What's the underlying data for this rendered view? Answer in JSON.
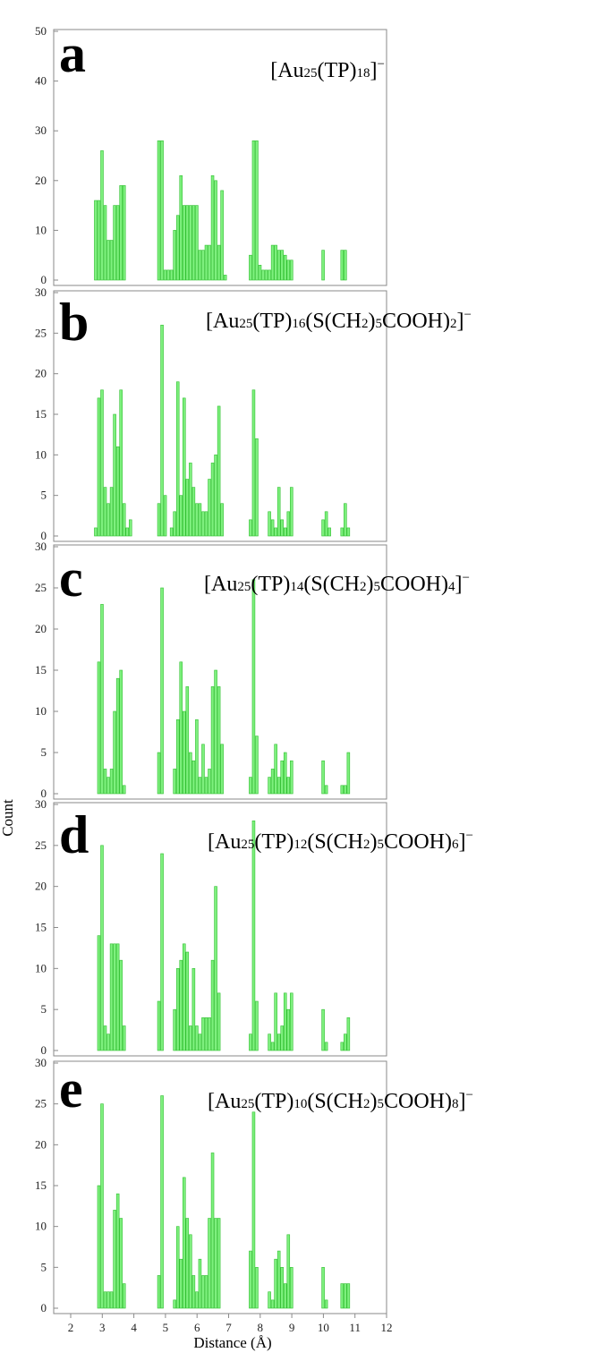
{
  "colors": {
    "bar_fill": "#7ef07e",
    "bar_stroke": "#2fbf2f",
    "frame": "#8a8a8a"
  },
  "chart_data": [
    {
      "type": "bar",
      "panel": "a",
      "formula": {
        "prefix": "[Au",
        "parts": [
          [
            "25",
            "sub"
          ],
          [
            "(TP)",
            ""
          ],
          [
            "18",
            "sub"
          ],
          [
            "]",
            ""
          ],
          [
            "−",
            "sup"
          ]
        ]
      },
      "ylim": [
        0,
        50
      ],
      "yticks": [
        0,
        10,
        20,
        30,
        40,
        50
      ],
      "xlim": [
        1.5,
        12
      ],
      "bin_width": 0.1,
      "x": [
        2.8,
        2.9,
        3.0,
        3.1,
        3.2,
        3.3,
        3.4,
        3.5,
        3.6,
        3.7,
        4.8,
        4.9,
        5.0,
        5.1,
        5.2,
        5.3,
        5.4,
        5.5,
        5.6,
        5.7,
        5.8,
        5.9,
        6.0,
        6.1,
        6.2,
        6.3,
        6.4,
        6.5,
        6.6,
        6.7,
        6.8,
        6.9,
        7.7,
        7.8,
        7.9,
        8.0,
        8.1,
        8.2,
        8.3,
        8.4,
        8.5,
        8.6,
        8.7,
        8.8,
        8.9,
        9.0,
        10.0,
        10.6,
        10.7
      ],
      "values": [
        16,
        16,
        26,
        15,
        8,
        8,
        15,
        15,
        19,
        19,
        28,
        28,
        2,
        2,
        2,
        10,
        13,
        21,
        15,
        15,
        15,
        15,
        15,
        6,
        6,
        7,
        7,
        21,
        20,
        7,
        18,
        1,
        5,
        28,
        28,
        3,
        2,
        2,
        2,
        7,
        7,
        6,
        6,
        5,
        4,
        4,
        6,
        6,
        6
      ]
    },
    {
      "type": "bar",
      "panel": "b",
      "formula": {
        "prefix": "[Au",
        "parts": [
          [
            "25",
            "sub"
          ],
          [
            "(TP)",
            ""
          ],
          [
            "16",
            "sub"
          ],
          [
            "(S(CH",
            ""
          ],
          [
            "2",
            "sub"
          ],
          [
            ")",
            ""
          ],
          [
            "5",
            "sub"
          ],
          [
            "COOH)",
            ""
          ],
          [
            "2",
            "sub"
          ],
          [
            "]",
            ""
          ],
          [
            "−",
            "sup"
          ]
        ]
      },
      "ylim": [
        0,
        30
      ],
      "yticks": [
        0,
        5,
        10,
        15,
        20,
        25,
        30
      ],
      "xlim": [
        1.5,
        12
      ],
      "bin_width": 0.1,
      "x": [
        2.8,
        2.9,
        3.0,
        3.1,
        3.2,
        3.3,
        3.4,
        3.5,
        3.6,
        3.7,
        3.8,
        3.9,
        4.8,
        4.9,
        5.0,
        5.1,
        5.2,
        5.3,
        5.4,
        5.5,
        5.6,
        5.7,
        5.8,
        5.9,
        6.0,
        6.1,
        6.2,
        6.3,
        6.4,
        6.5,
        6.6,
        6.7,
        6.8,
        7.7,
        7.8,
        7.9,
        8.0,
        8.3,
        8.4,
        8.5,
        8.6,
        8.7,
        8.8,
        8.9,
        9.0,
        9.1,
        10.0,
        10.1,
        10.2,
        10.6,
        10.7,
        10.8
      ],
      "values": [
        1,
        17,
        18,
        6,
        4,
        6,
        15,
        11,
        18,
        4,
        1,
        2,
        4,
        26,
        5,
        0,
        1,
        3,
        19,
        5,
        17,
        7,
        9,
        6,
        4,
        4,
        3,
        3,
        7,
        9,
        10,
        16,
        4,
        2,
        18,
        12,
        0,
        3,
        2,
        1,
        6,
        2,
        1,
        3,
        6,
        0,
        2,
        3,
        1,
        1,
        4,
        1
      ],
      "notes": ""
    },
    {
      "type": "bar",
      "panel": "c",
      "formula": {
        "prefix": "[Au",
        "parts": [
          [
            "25",
            "sub"
          ],
          [
            "(TP)",
            ""
          ],
          [
            "14",
            "sub"
          ],
          [
            "(S(CH",
            ""
          ],
          [
            "2",
            "sub"
          ],
          [
            ")",
            ""
          ],
          [
            "5",
            "sub"
          ],
          [
            "COOH)",
            ""
          ],
          [
            "4",
            "sub"
          ],
          [
            "]",
            ""
          ],
          [
            "−",
            "sup"
          ]
        ]
      },
      "ylim": [
        0,
        30
      ],
      "yticks": [
        0,
        5,
        10,
        15,
        20,
        25,
        30
      ],
      "xlim": [
        1.5,
        12
      ],
      "bin_width": 0.1,
      "x": [
        2.9,
        3.0,
        3.1,
        3.2,
        3.3,
        3.4,
        3.5,
        3.6,
        3.7,
        4.8,
        4.9,
        5.0,
        5.3,
        5.4,
        5.5,
        5.6,
        5.7,
        5.8,
        5.9,
        6.0,
        6.1,
        6.2,
        6.3,
        6.4,
        6.5,
        6.6,
        6.7,
        6.8,
        7.7,
        7.8,
        7.9,
        8.0,
        8.3,
        8.4,
        8.5,
        8.6,
        8.7,
        8.8,
        8.9,
        9.0,
        10.0,
        10.1,
        10.6,
        10.7,
        10.8
      ],
      "values": [
        16,
        23,
        3,
        2,
        3,
        10,
        14,
        15,
        1,
        5,
        25,
        0,
        3,
        9,
        16,
        10,
        13,
        5,
        4,
        9,
        2,
        6,
        2,
        3,
        13,
        15,
        13,
        6,
        2,
        26,
        7,
        0,
        2,
        3,
        6,
        2,
        4,
        5,
        2,
        4,
        4,
        1,
        1,
        1,
        5
      ]
    },
    {
      "type": "bar",
      "panel": "d",
      "formula": {
        "prefix": "[Au",
        "parts": [
          [
            "25",
            "sub"
          ],
          [
            "(TP)",
            ""
          ],
          [
            "12",
            "sub"
          ],
          [
            "(S(CH",
            ""
          ],
          [
            "2",
            "sub"
          ],
          [
            ")",
            ""
          ],
          [
            "5",
            "sub"
          ],
          [
            "COOH)",
            ""
          ],
          [
            "6",
            "sub"
          ],
          [
            "]",
            ""
          ],
          [
            "−",
            "sup"
          ]
        ]
      },
      "ylim": [
        0,
        30
      ],
      "yticks": [
        0,
        5,
        10,
        15,
        20,
        25,
        30
      ],
      "xlim": [
        1.5,
        12
      ],
      "bin_width": 0.1,
      "x": [
        2.9,
        3.0,
        3.1,
        3.2,
        3.3,
        3.4,
        3.5,
        3.6,
        3.7,
        4.8,
        4.9,
        5.0,
        5.3,
        5.4,
        5.5,
        5.6,
        5.7,
        5.8,
        5.9,
        6.0,
        6.1,
        6.2,
        6.3,
        6.4,
        6.5,
        6.6,
        6.7,
        7.7,
        7.8,
        7.9,
        8.0,
        8.3,
        8.4,
        8.5,
        8.6,
        8.7,
        8.8,
        8.9,
        9.0,
        10.0,
        10.1,
        10.6,
        10.7,
        10.8
      ],
      "values": [
        14,
        25,
        3,
        2,
        13,
        13,
        13,
        11,
        3,
        6,
        24,
        0,
        5,
        10,
        11,
        13,
        12,
        3,
        10,
        3,
        2,
        4,
        4,
        4,
        11,
        20,
        7,
        2,
        28,
        6,
        0,
        2,
        1,
        7,
        2,
        3,
        7,
        5,
        7,
        5,
        1,
        1,
        2,
        4
      ]
    },
    {
      "type": "bar",
      "panel": "e",
      "formula": {
        "prefix": "[Au",
        "parts": [
          [
            "25",
            "sub"
          ],
          [
            "(TP)",
            ""
          ],
          [
            "10",
            "sub"
          ],
          [
            "(S(CH",
            ""
          ],
          [
            "2",
            "sub"
          ],
          [
            ")",
            ""
          ],
          [
            "5",
            "sub"
          ],
          [
            "COOH)",
            ""
          ],
          [
            "8",
            "sub"
          ],
          [
            "]",
            ""
          ],
          [
            "−",
            "sup"
          ]
        ]
      },
      "ylim": [
        0,
        30
      ],
      "yticks": [
        0,
        5,
        10,
        15,
        20,
        25,
        30
      ],
      "xlim": [
        1.5,
        12
      ],
      "bin_width": 0.1,
      "x": [
        2.9,
        3.0,
        3.1,
        3.2,
        3.3,
        3.4,
        3.5,
        3.6,
        3.7,
        4.8,
        4.9,
        5.0,
        5.3,
        5.4,
        5.5,
        5.6,
        5.7,
        5.8,
        5.9,
        6.0,
        6.1,
        6.2,
        6.3,
        6.4,
        6.5,
        6.6,
        6.7,
        7.7,
        7.8,
        7.9,
        8.0,
        8.3,
        8.4,
        8.5,
        8.6,
        8.7,
        8.8,
        8.9,
        9.0,
        10.0,
        10.1,
        10.6,
        10.7,
        10.8
      ],
      "values": [
        15,
        25,
        2,
        2,
        2,
        12,
        14,
        11,
        3,
        4,
        26,
        0,
        1,
        10,
        6,
        16,
        11,
        9,
        4,
        2,
        6,
        4,
        4,
        11,
        19,
        11,
        11,
        7,
        24,
        5,
        0,
        2,
        1,
        6,
        7,
        5,
        3,
        9,
        5,
        5,
        1,
        3,
        3,
        3
      ]
    }
  ],
  "shared": {
    "ylabel": "Count",
    "xlabel": "Distance (Å)",
    "xticks": [
      "2",
      "3",
      "4",
      "5",
      "6",
      "7",
      "8",
      "9",
      "10",
      "11",
      "12"
    ],
    "xtick_values": [
      2,
      3,
      4,
      5,
      6,
      7,
      8,
      9,
      10,
      11,
      12
    ]
  }
}
